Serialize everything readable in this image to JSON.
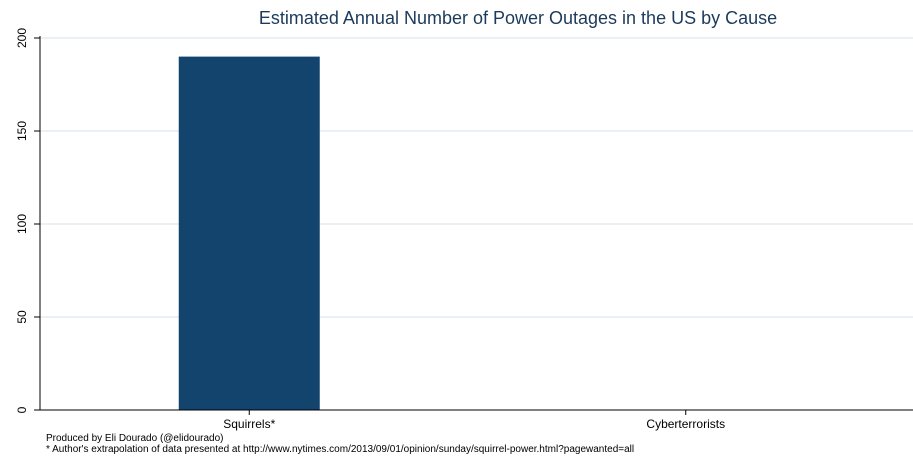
{
  "chart_data": {
    "type": "bar",
    "title": "Estimated Annual Number of Power Outages in the US by Cause",
    "xlabel": "",
    "ylabel": "",
    "categories": [
      "Squirrels*",
      "Cyberterrorists"
    ],
    "values": [
      190,
      0
    ],
    "ylim": [
      0,
      200
    ],
    "yticks": [
      0,
      50,
      100,
      150,
      200
    ],
    "grid": true,
    "legend": "none",
    "colors": {
      "bar": "#13446e",
      "grid": "#dde6ee",
      "axis": "#000000",
      "title": "#1c3a5c"
    }
  },
  "footnotes": {
    "credit": "Produced by Eli Dourado (@elidourado)",
    "note": "* Author's extrapolation of data presented at http://www.nytimes.com/2013/09/01/opinion/sunday/squirrel-power.html?pagewanted=all"
  }
}
